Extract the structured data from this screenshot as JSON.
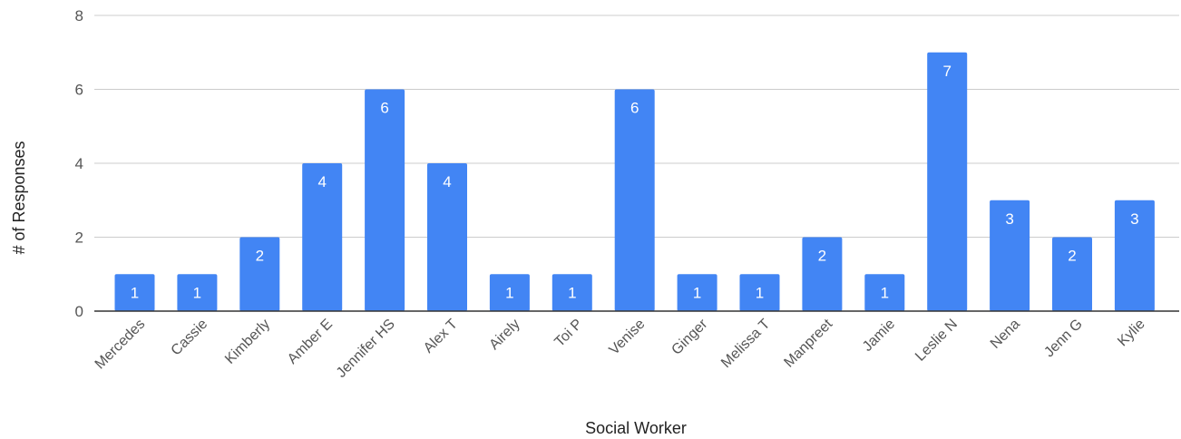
{
  "chart_data": {
    "type": "bar",
    "title": "",
    "xlabel": "Social Worker",
    "ylabel": "# of Responses",
    "ylim": [
      0,
      8
    ],
    "yticks": [
      0,
      2,
      4,
      6,
      8
    ],
    "grid": true,
    "legend": "none",
    "bar_color": "#4285F4",
    "categories": [
      "Mercedes",
      "Cassie",
      "Kimberly",
      "Amber E",
      "Jennifer HS",
      "Alex T",
      "Airely",
      "Toi P",
      "Venise",
      "Ginger",
      "Melissa T",
      "Manpreet",
      "Jamie",
      "Leslie N",
      "Nena",
      "Jenn G",
      "Kylie"
    ],
    "values": [
      1,
      1,
      2,
      4,
      6,
      4,
      1,
      1,
      6,
      1,
      1,
      2,
      1,
      7,
      3,
      2,
      3
    ]
  }
}
